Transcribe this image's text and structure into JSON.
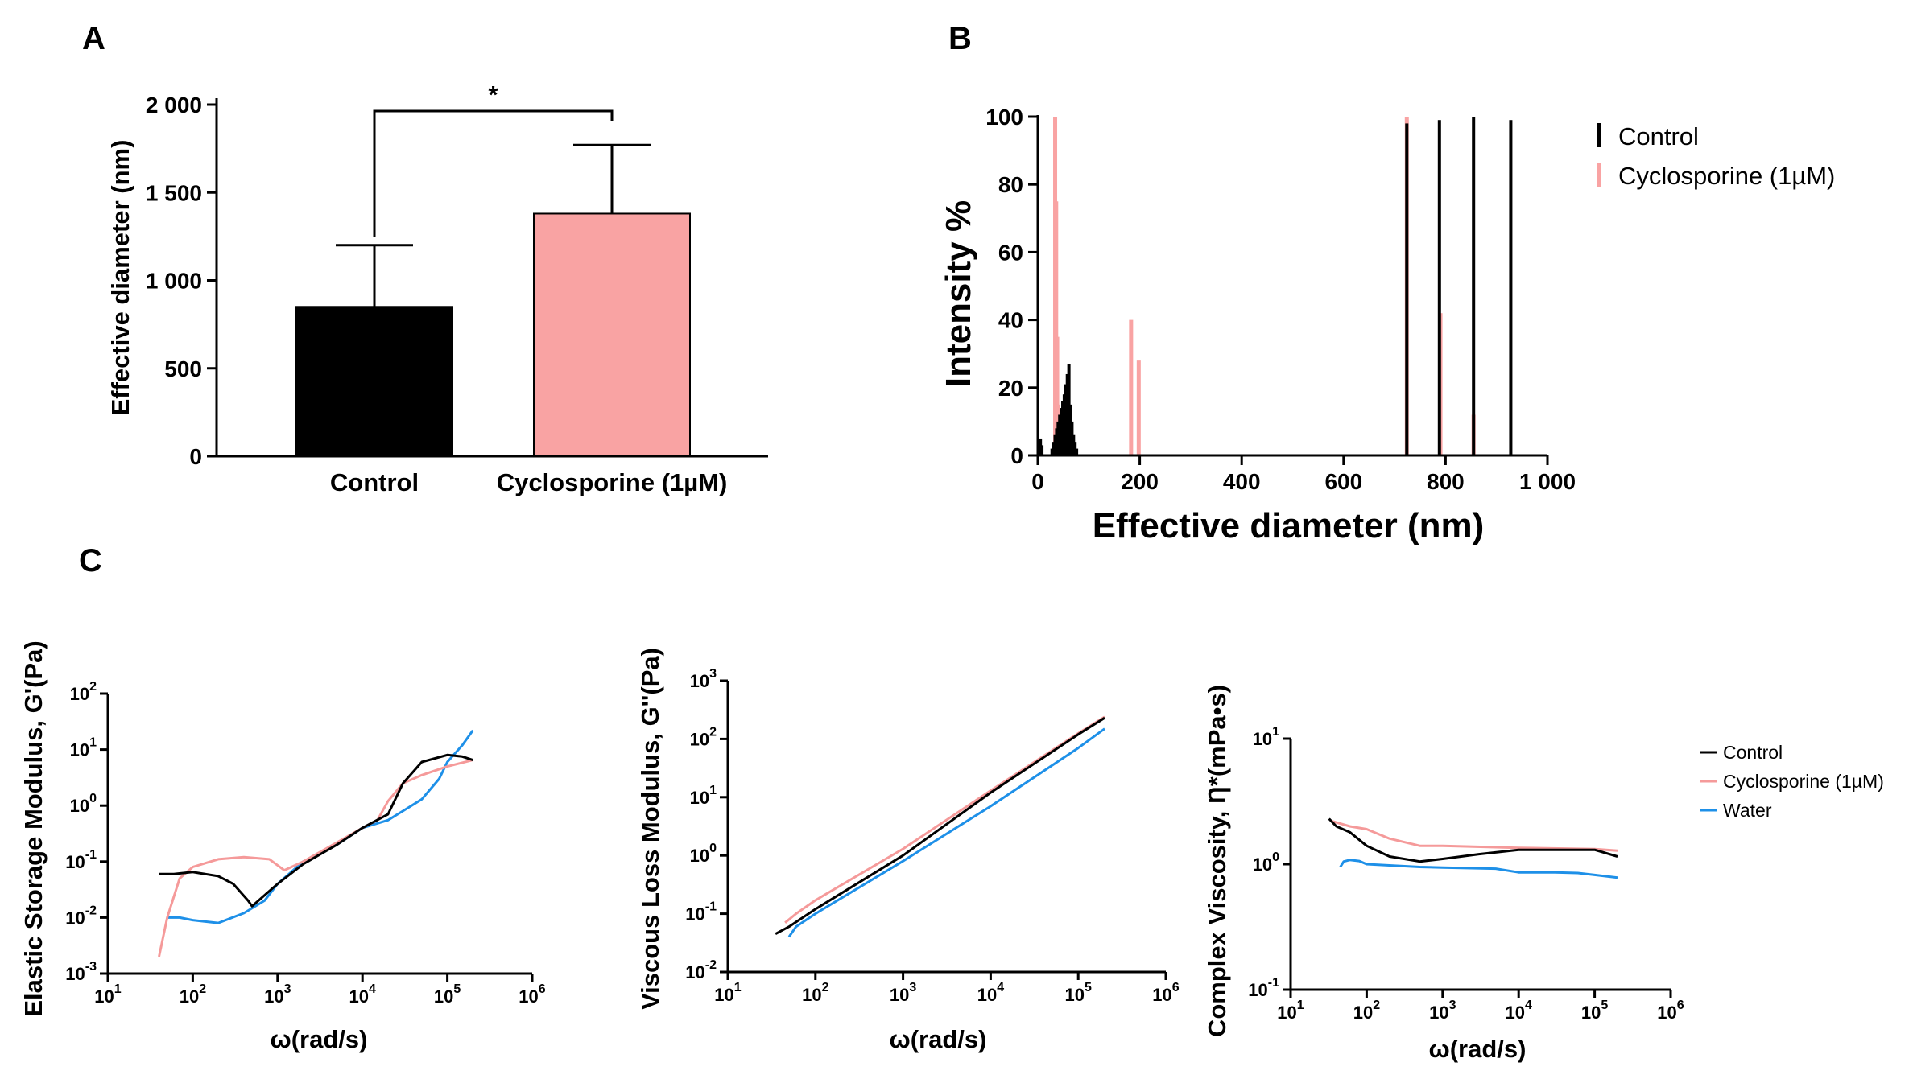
{
  "panels": {
    "a": "A",
    "b": "B",
    "c": "C"
  },
  "colors": {
    "control": "#000000",
    "cyclosporine": "#f9a3a3",
    "water": "#1e90e8",
    "cyclosporine_line": "#f59a9a"
  },
  "chart_data": [
    {
      "id": "A",
      "type": "bar",
      "ylabel": "Effective diameter (nm)",
      "categories": [
        "Control",
        "Cyclosporine (1µM)"
      ],
      "values": [
        850,
        1380
      ],
      "errors": [
        350,
        390
      ],
      "ylim": [
        0,
        2000
      ],
      "yticks": [
        0,
        500,
        1000,
        1500,
        2000
      ],
      "ytick_labels": [
        "0",
        "500",
        "1 000",
        "1 500",
        "2 000"
      ],
      "significance": "*"
    },
    {
      "id": "B",
      "type": "bar",
      "xlabel": "Effective diameter (nm)",
      "ylabel": "Intensity %",
      "xlim": [
        0,
        1000
      ],
      "ylim": [
        0,
        100
      ],
      "xticks": [
        0,
        200,
        400,
        600,
        800,
        1000
      ],
      "xtick_labels": [
        "0",
        "200",
        "400",
        "600",
        "800",
        "1 000"
      ],
      "yticks": [
        0,
        20,
        40,
        60,
        80,
        100
      ],
      "legend": [
        "Control",
        "Cyclosporine (1µM)"
      ],
      "series": [
        {
          "name": "Control",
          "x": [
            5,
            8,
            28,
            31,
            34,
            37,
            40,
            43,
            46,
            49,
            52,
            55,
            58,
            61,
            64,
            67,
            70,
            73,
            76,
            724,
            788,
            855,
            928
          ],
          "values": [
            5,
            3,
            2,
            4,
            6,
            8,
            10,
            12,
            14,
            16,
            18,
            21,
            24,
            27,
            15,
            10,
            6,
            4,
            2,
            98,
            99,
            100,
            99
          ]
        },
        {
          "name": "Cyclosporine (1µM)",
          "x": [
            34,
            36,
            38,
            40,
            183,
            198,
            724,
            790,
            855
          ],
          "values": [
            100,
            75,
            35,
            15,
            40,
            28,
            100,
            42,
            12
          ]
        }
      ]
    },
    {
      "id": "C1",
      "type": "line",
      "xlabel": "ω(rad/s)",
      "ylabel": "Elastic Storage Modulus, G'(Pa)",
      "xscale": "log",
      "yscale": "log",
      "xlim_exp": [
        1,
        6
      ],
      "ylim_exp": [
        -3,
        2
      ],
      "series": [
        {
          "name": "Control",
          "x": [
            40,
            60,
            100,
            200,
            300,
            450,
            500,
            700,
            1000,
            2000,
            5000,
            10000,
            20000,
            30000,
            50000,
            100000,
            150000,
            200000
          ],
          "y": [
            0.06,
            0.06,
            0.065,
            0.055,
            0.04,
            0.02,
            0.016,
            0.025,
            0.04,
            0.09,
            0.2,
            0.4,
            0.7,
            2.5,
            6,
            8,
            7.5,
            6.5
          ]
        },
        {
          "name": "Cyclosporine (1µM)",
          "x": [
            40,
            50,
            70,
            100,
            200,
            400,
            800,
            1200,
            2000,
            5000,
            10000,
            15000,
            20000,
            30000,
            50000,
            100000,
            200000
          ],
          "y": [
            0.002,
            0.01,
            0.05,
            0.08,
            0.11,
            0.12,
            0.11,
            0.07,
            0.1,
            0.22,
            0.4,
            0.55,
            1.2,
            2.5,
            3.5,
            5,
            6.5
          ]
        },
        {
          "name": "Water",
          "x": [
            50,
            70,
            100,
            200,
            400,
            700,
            1000,
            2000,
            5000,
            10000,
            20000,
            30000,
            50000,
            80000,
            100000,
            150000,
            200000
          ],
          "y": [
            0.01,
            0.01,
            0.009,
            0.008,
            0.012,
            0.02,
            0.04,
            0.1,
            0.2,
            0.4,
            0.55,
            0.8,
            1.3,
            3,
            6,
            12,
            22
          ]
        }
      ]
    },
    {
      "id": "C2",
      "type": "line",
      "xlabel": "ω(rad/s)",
      "ylabel": "Viscous Loss Modulus, G''(Pa)",
      "xscale": "log",
      "yscale": "log",
      "xlim_exp": [
        1,
        6
      ],
      "ylim_exp": [
        -2,
        3
      ],
      "series": [
        {
          "name": "Control",
          "x": [
            35,
            50,
            100,
            1000,
            10000,
            100000,
            200000
          ],
          "y": [
            0.045,
            0.06,
            0.12,
            1.0,
            12,
            120,
            230
          ]
        },
        {
          "name": "Cyclosporine (1µM)",
          "x": [
            45,
            60,
            100,
            1000,
            10000,
            100000,
            200000
          ],
          "y": [
            0.07,
            0.1,
            0.17,
            1.3,
            13,
            125,
            240
          ]
        },
        {
          "name": "Water",
          "x": [
            50,
            60,
            100,
            1000,
            10000,
            100000,
            200000
          ],
          "y": [
            0.04,
            0.06,
            0.1,
            0.8,
            7,
            70,
            150
          ]
        }
      ]
    },
    {
      "id": "C3",
      "type": "line",
      "xlabel": "ω(rad/s)",
      "ylabel": "Complex Viscosity, Ƞ*(mPa•s)",
      "xscale": "log",
      "yscale": "log",
      "xlim_exp": [
        1,
        6
      ],
      "ylim_exp": [
        -1,
        1
      ],
      "legend": [
        "Control",
        "Cyclosporine (1µM)",
        "Water"
      ],
      "series": [
        {
          "name": "Control",
          "x": [
            32,
            40,
            60,
            100,
            200,
            500,
            1000,
            3000,
            10000,
            30000,
            60000,
            100000,
            200000
          ],
          "y": [
            2.3,
            2.0,
            1.8,
            1.4,
            1.15,
            1.05,
            1.1,
            1.2,
            1.3,
            1.3,
            1.3,
            1.3,
            1.15
          ]
        },
        {
          "name": "Cyclosporine (1µM)",
          "x": [
            35,
            60,
            100,
            200,
            500,
            1000,
            10000,
            100000,
            200000
          ],
          "y": [
            2.2,
            2.0,
            1.9,
            1.6,
            1.4,
            1.4,
            1.35,
            1.32,
            1.28
          ]
        },
        {
          "name": "Water",
          "x": [
            45,
            50,
            60,
            80,
            100,
            500,
            1000,
            5000,
            10000,
            30000,
            60000,
            100000,
            200000
          ],
          "y": [
            0.95,
            1.05,
            1.08,
            1.06,
            1.0,
            0.95,
            0.94,
            0.92,
            0.86,
            0.86,
            0.85,
            0.82,
            0.78
          ]
        }
      ]
    }
  ]
}
